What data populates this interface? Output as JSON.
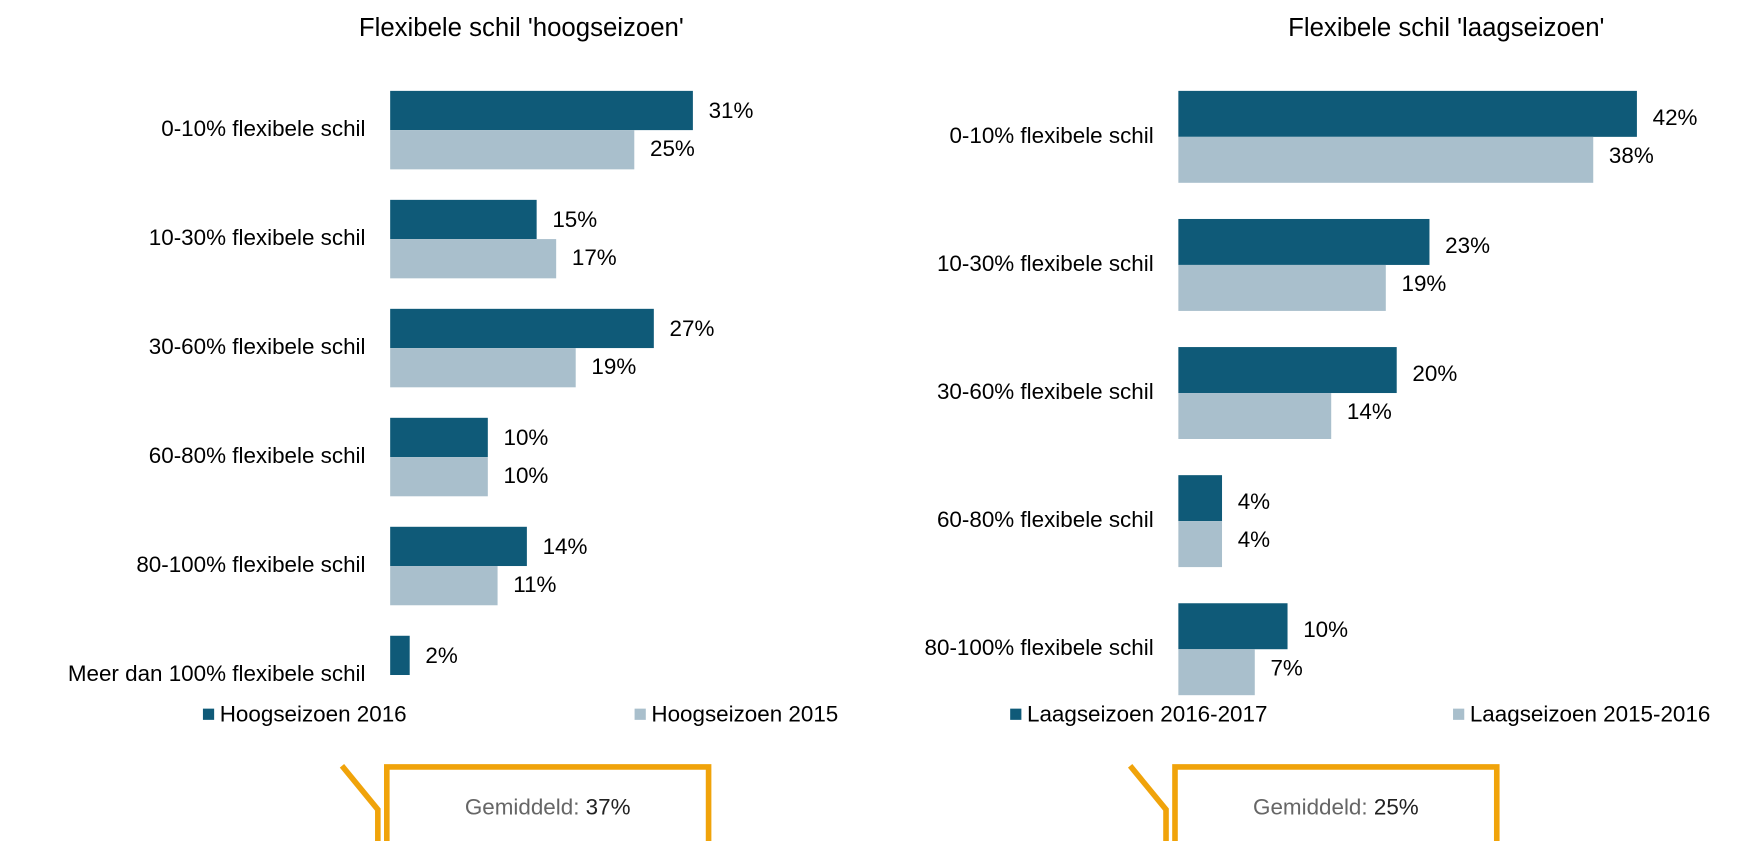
{
  "chart_data": [
    {
      "type": "bar",
      "orientation": "horizontal",
      "title": "Flexibele schil 'hoogseizoen'",
      "categories": [
        "0-10% flexibele schil",
        "10-30% flexibele schil",
        "30-60% flexibele schil",
        "60-80% flexibele schil",
        "80-100% flexibele schil",
        "Meer dan 100% flexibele schil"
      ],
      "series": [
        {
          "name": "Hoogseizoen 2016",
          "color": "#0f5a78",
          "values": [
            31,
            15,
            27,
            10,
            14,
            2
          ],
          "value_labels": [
            "31%",
            "15%",
            "27%",
            "10%",
            "14%",
            "2%"
          ]
        },
        {
          "name": "Hoogseizoen 2015",
          "color": "#a9bfcc",
          "values": [
            25,
            17,
            19,
            10,
            11,
            null
          ],
          "value_labels": [
            "25%",
            "17%",
            "19%",
            "10%",
            "11%",
            null
          ]
        }
      ],
      "annotation": {
        "label": "Gemiddeld:",
        "value": "37%"
      }
    },
    {
      "type": "bar",
      "orientation": "horizontal",
      "title": "Flexibele schil 'laagseizoen'",
      "categories": [
        "0-10% flexibele schil",
        "10-30% flexibele schil",
        "30-60% flexibele schil",
        "60-80% flexibele schil",
        "80-100% flexibele schil"
      ],
      "series": [
        {
          "name": "Laagseizoen 2016-2017",
          "color": "#0f5a78",
          "values": [
            42,
            23,
            20,
            4,
            10
          ],
          "value_labels": [
            "42%",
            "23%",
            "20%",
            "4%",
            "10%"
          ]
        },
        {
          "name": "Laagseizoen 2015-2016",
          "color": "#a9bfcc",
          "values": [
            38,
            19,
            14,
            4,
            7
          ],
          "value_labels": [
            "38%",
            "19%",
            "14%",
            "4%",
            "7%"
          ]
        }
      ],
      "annotation": {
        "label": "Gemiddeld:",
        "value": "25%"
      }
    }
  ]
}
